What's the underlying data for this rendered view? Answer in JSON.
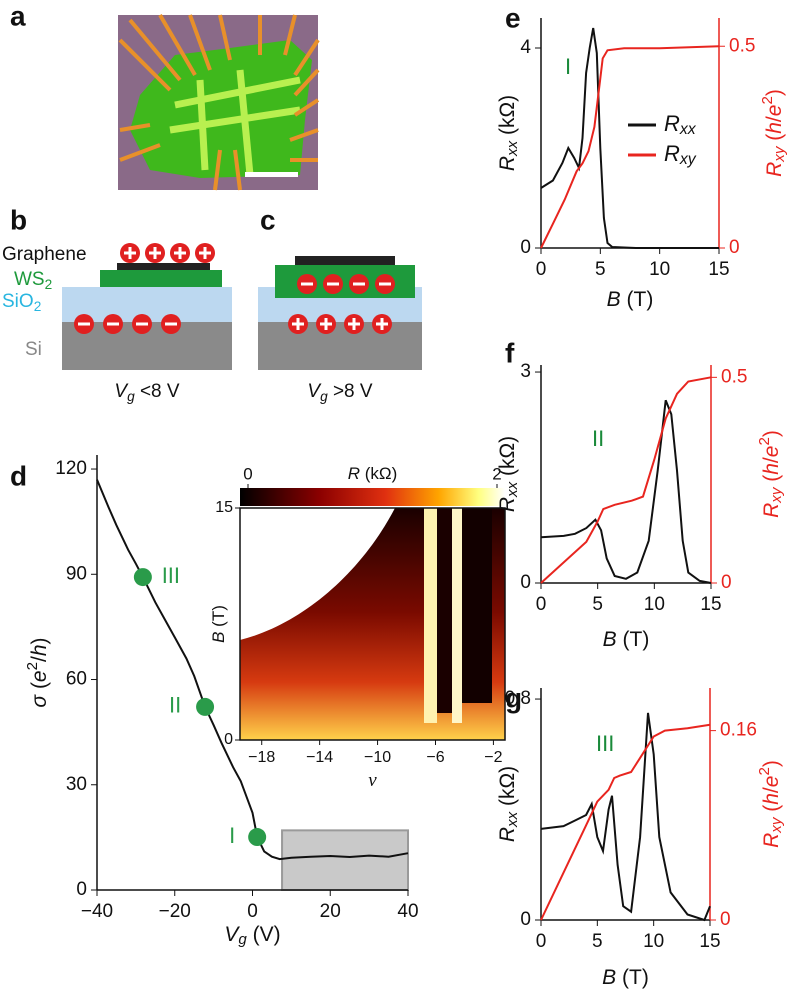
{
  "panel_labels": [
    "a",
    "b",
    "c",
    "d",
    "e",
    "f",
    "g"
  ],
  "diagram_b": {
    "graphene": "Graphene",
    "ws2": [
      {
        "text": "WS"
      },
      {
        "text": "2",
        "style": "sub"
      }
    ],
    "sio2": [
      {
        "text": "SiO"
      },
      {
        "text": "2",
        "style": "sub"
      }
    ],
    "si": "Si",
    "caption": [
      {
        "text": "V",
        "style": "italic"
      },
      {
        "text": "g",
        "style": "italic-sub"
      },
      {
        "text": " <8 V"
      }
    ]
  },
  "diagram_c": {
    "caption": [
      {
        "text": "V",
        "style": "italic"
      },
      {
        "text": "g",
        "style": "italic-sub"
      },
      {
        "text": " >8 V"
      }
    ]
  },
  "chart_data": [
    {
      "type": "line",
      "xlabel": [
        {
          "text": "V",
          "style": "italic"
        },
        {
          "text": "g",
          "style": "italic-sub"
        },
        {
          "text": " (V)"
        }
      ],
      "ylabel": [
        {
          "text": "σ",
          "style": "italic"
        },
        {
          "text": " ("
        },
        {
          "text": "e",
          "style": "italic"
        },
        {
          "text": "2",
          "style": "sup"
        },
        {
          "text": "/"
        },
        {
          "text": "h",
          "style": "italic"
        },
        {
          "text": ")"
        }
      ],
      "xlim": [
        -40,
        40
      ],
      "xticks": [
        {
          "value": -40,
          "label": "−40"
        },
        {
          "value": -20,
          "label": "−20"
        },
        0,
        20,
        40
      ],
      "ylim": [
        0,
        124
      ],
      "yticks": [
        0,
        30,
        60,
        90,
        120
      ],
      "series": [
        {
          "color": "#111111",
          "x": [
            -40,
            -37,
            -35,
            -32,
            -30,
            -28.2,
            -25,
            -22,
            -20,
            -17,
            -15,
            -12.2,
            -10,
            -8,
            -5,
            -3,
            -2,
            -1,
            0,
            1.2,
            3,
            5,
            7,
            10,
            15,
            20,
            25,
            30,
            35,
            40
          ],
          "values": [
            117,
            109,
            104,
            97,
            93,
            89.2,
            82,
            76,
            72,
            66,
            61,
            52.2,
            47,
            42,
            35,
            31,
            28,
            25,
            22,
            15.1,
            11,
            9.5,
            8.8,
            9.2,
            9.5,
            9.7,
            9.4,
            9.8,
            9.5,
            10.5
          ]
        }
      ],
      "markers": {
        "color": "#2a9b4a",
        "x": [
          1.2,
          -12.2,
          -28.2
        ],
        "values": [
          15.1,
          52.2,
          89.2
        ],
        "labels": [
          "I",
          "II",
          "III"
        ]
      },
      "shaded_region": {
        "xlim": [
          7.6,
          40
        ],
        "ylim": [
          0,
          17
        ]
      }
    },
    {
      "type": "heatmap",
      "colorbar": {
        "label": [
          {
            "text": "R",
            "style": "italic"
          },
          {
            "text": " (kΩ)"
          }
        ],
        "lim": [
          0,
          2
        ],
        "ticks": [
          0,
          2
        ]
      },
      "xlabel": [
        {
          "text": "ν",
          "style": "italic"
        }
      ],
      "ylabel": [
        {
          "text": "B",
          "style": "italic"
        },
        {
          "text": " (T)"
        }
      ],
      "xlim": [
        -19.5,
        -1.2
      ],
      "xticks": [
        {
          "value": -18,
          "label": "−18"
        },
        {
          "value": -14,
          "label": "−14"
        },
        {
          "value": -10,
          "label": "−10"
        },
        {
          "value": -6,
          "label": "−6"
        },
        {
          "value": -2,
          "label": "−2"
        }
      ],
      "ylim": [
        0,
        15
      ],
      "yticks": [
        0,
        15
      ]
    },
    {
      "type": "line",
      "annotation": "I",
      "legend": true,
      "xlabel": [
        {
          "text": "B",
          "style": "italic"
        },
        {
          "text": " (T)"
        }
      ],
      "ylabel": [
        {
          "text": "R",
          "style": "italic"
        },
        {
          "text": "xx",
          "style": "italic-sub"
        },
        {
          "text": " (kΩ)"
        }
      ],
      "y2label": [
        {
          "text": "R",
          "style": "italic"
        },
        {
          "text": "xy",
          "style": "italic-sub"
        },
        {
          "text": " ("
        },
        {
          "text": "h",
          "style": "italic"
        },
        {
          "text": "/"
        },
        {
          "text": "e",
          "style": "italic"
        },
        {
          "text": "2",
          "style": "sup"
        },
        {
          "text": ")"
        }
      ],
      "xlim": [
        0,
        15
      ],
      "xticks": [
        0,
        5,
        10,
        15
      ],
      "ylim": [
        0,
        4.6
      ],
      "yticks": [
        0,
        4
      ],
      "y2lim": [
        0,
        0.57
      ],
      "y2ticks": [
        0,
        0.5
      ],
      "series": [
        {
          "name": [
            {
              "text": "R",
              "style": "italic"
            },
            {
              "text": "xx",
              "style": "italic-sub"
            }
          ],
          "color": "#111111",
          "x": [
            0,
            1,
            1.8,
            2.3,
            2.8,
            3.2,
            3.5,
            3.8,
            4.1,
            4.4,
            4.7,
            5,
            5.3,
            5.6,
            6,
            8,
            10,
            15
          ],
          "values": [
            1.2,
            1.35,
            1.7,
            2.0,
            1.8,
            1.6,
            2.2,
            3.5,
            4.0,
            4.4,
            3.9,
            2.0,
            0.6,
            0.1,
            0.02,
            0,
            0,
            0
          ]
        },
        {
          "name": [
            {
              "text": "R",
              "style": "italic"
            },
            {
              "text": "xy",
              "style": "italic-sub"
            }
          ],
          "color": "#e8251f",
          "axis": "y2",
          "x": [
            0,
            1,
            2,
            3,
            3.5,
            4,
            4.5,
            5,
            5.2,
            5.6,
            7,
            10,
            15
          ],
          "values": [
            0,
            0.06,
            0.12,
            0.19,
            0.21,
            0.24,
            0.3,
            0.42,
            0.47,
            0.49,
            0.495,
            0.495,
            0.5
          ]
        }
      ]
    },
    {
      "type": "line",
      "annotation": "II",
      "xlabel": [
        {
          "text": "B",
          "style": "italic"
        },
        {
          "text": " (T)"
        }
      ],
      "ylabel": [
        {
          "text": "R",
          "style": "italic"
        },
        {
          "text": "xx",
          "style": "italic-sub"
        },
        {
          "text": " (kΩ)"
        }
      ],
      "y2label": [
        {
          "text": "R",
          "style": "italic"
        },
        {
          "text": "xy",
          "style": "italic-sub"
        },
        {
          "text": " ("
        },
        {
          "text": "h",
          "style": "italic"
        },
        {
          "text": "/"
        },
        {
          "text": "e",
          "style": "italic"
        },
        {
          "text": "2",
          "style": "sup"
        },
        {
          "text": ")"
        }
      ],
      "xlim": [
        0,
        15
      ],
      "xticks": [
        0,
        5,
        10,
        15
      ],
      "ylim": [
        0,
        3.1
      ],
      "yticks": [
        0,
        3
      ],
      "y2lim": [
        0,
        0.53
      ],
      "y2ticks": [
        0,
        0.5
      ],
      "series": [
        {
          "color": "#111111",
          "x": [
            0,
            2,
            3,
            4,
            4.8,
            5.3,
            5.8,
            6.5,
            7.5,
            8.5,
            9.5,
            10.3,
            11,
            11.5,
            12,
            12.5,
            13,
            14,
            15
          ],
          "values": [
            0.65,
            0.67,
            0.7,
            0.78,
            0.9,
            0.75,
            0.35,
            0.1,
            0.06,
            0.15,
            0.6,
            1.6,
            2.6,
            2.4,
            1.6,
            0.6,
            0.15,
            0.03,
            0
          ]
        },
        {
          "color": "#e8251f",
          "axis": "y2",
          "x": [
            0,
            2,
            4,
            5,
            5.5,
            6.5,
            8,
            9,
            10,
            11,
            12,
            13,
            15
          ],
          "values": [
            0,
            0.05,
            0.1,
            0.15,
            0.18,
            0.19,
            0.2,
            0.21,
            0.3,
            0.4,
            0.46,
            0.49,
            0.5
          ]
        }
      ]
    },
    {
      "type": "line",
      "annotation": "III",
      "xlabel": [
        {
          "text": "B",
          "style": "italic"
        },
        {
          "text": " (T)"
        }
      ],
      "ylabel": [
        {
          "text": "R",
          "style": "italic"
        },
        {
          "text": "xx",
          "style": "italic-sub"
        },
        {
          "text": " (kΩ)"
        }
      ],
      "y2label": [
        {
          "text": "R",
          "style": "italic"
        },
        {
          "text": "xy",
          "style": "italic-sub"
        },
        {
          "text": " ("
        },
        {
          "text": "h",
          "style": "italic"
        },
        {
          "text": "/"
        },
        {
          "text": "e",
          "style": "italic"
        },
        {
          "text": "2",
          "style": "sup"
        },
        {
          "text": ")"
        }
      ],
      "xlim": [
        0,
        15
      ],
      "xticks": [
        0,
        5,
        10,
        15
      ],
      "ylim": [
        0,
        0.84
      ],
      "yticks": [
        0,
        0.8
      ],
      "y2lim": [
        0,
        0.196
      ],
      "y2ticks": [
        0,
        0.16
      ],
      "series": [
        {
          "color": "#111111",
          "x": [
            0,
            2,
            3,
            4,
            4.5,
            5,
            5.5,
            6,
            6.3,
            6.8,
            7.3,
            8,
            8.8,
            9.5,
            10,
            10.5,
            11.5,
            13,
            14.5,
            15
          ],
          "values": [
            0.33,
            0.34,
            0.36,
            0.38,
            0.42,
            0.3,
            0.25,
            0.4,
            0.45,
            0.2,
            0.05,
            0.03,
            0.3,
            0.75,
            0.6,
            0.3,
            0.1,
            0.02,
            0,
            0.05
          ]
        },
        {
          "color": "#e8251f",
          "axis": "y2",
          "x": [
            0,
            2,
            4,
            5,
            6,
            6.5,
            7,
            8,
            9,
            10,
            11,
            13,
            15
          ],
          "values": [
            0,
            0.04,
            0.08,
            0.1,
            0.11,
            0.12,
            0.122,
            0.125,
            0.14,
            0.155,
            0.16,
            0.162,
            0.165
          ]
        }
      ]
    }
  ]
}
